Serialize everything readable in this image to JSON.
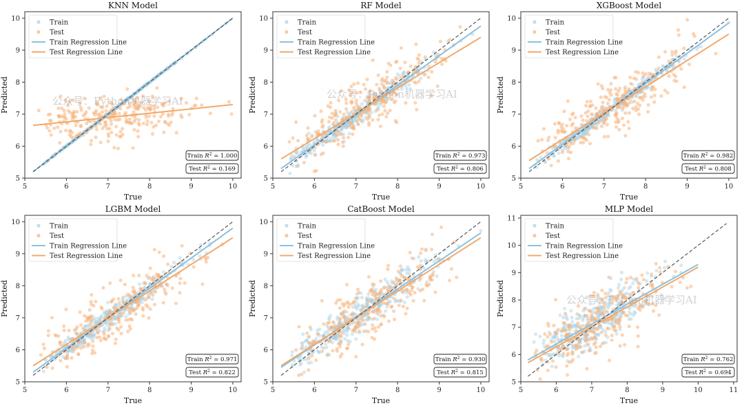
{
  "figure": {
    "watermark": "公众号：Python机器学习AI",
    "colors": {
      "train": "#a6cee3",
      "test": "#f7b27a",
      "train_line": "#8cc0dd",
      "test_line": "#f2a86a",
      "diagonal": "#555555"
    },
    "legend_labels": [
      "Train",
      "Test",
      "Train Regression Line",
      "Test Regression Line"
    ]
  },
  "chart_data": [
    {
      "type": "scatter",
      "title": "KNN Model",
      "xlabel": "True",
      "ylabel": "Predicted",
      "xlim": [
        5,
        10.2
      ],
      "ylim": [
        5,
        10.2
      ],
      "xticks": [
        5,
        6,
        7,
        8,
        9,
        10
      ],
      "yticks": [
        5,
        6,
        7,
        8,
        9,
        10
      ],
      "train_line": [
        [
          5.2,
          5.2
        ],
        [
          10,
          10
        ]
      ],
      "test_line": [
        [
          5.2,
          6.65
        ],
        [
          10,
          7.3
        ]
      ],
      "train_r2": "Train $R^2$ = 1.000",
      "test_r2": "Test $R^2$ = 0.169",
      "legend_position": "upper-left",
      "watermark": true
    },
    {
      "type": "scatter",
      "title": "RF Model",
      "xlabel": "True",
      "ylabel": "Predicted",
      "xlim": [
        5,
        10.2
      ],
      "ylim": [
        5,
        10.2
      ],
      "xticks": [
        5,
        6,
        7,
        8,
        9,
        10
      ],
      "yticks": [
        5,
        6,
        7,
        8,
        9,
        10
      ],
      "train_line": [
        [
          5.2,
          5.3
        ],
        [
          10,
          9.75
        ]
      ],
      "test_line": [
        [
          5.2,
          5.6
        ],
        [
          10,
          9.4
        ]
      ],
      "train_r2": "Train $R^2$ = 0.973",
      "test_r2": "Test $R^2$ = 0.806",
      "legend_position": "upper-left",
      "watermark": true
    },
    {
      "type": "scatter",
      "title": "XGBoost Model",
      "xlabel": "True",
      "ylabel": "Predicted",
      "xlim": [
        5,
        10.2
      ],
      "ylim": [
        5,
        10.2
      ],
      "xticks": [
        5,
        6,
        7,
        8,
        9,
        10
      ],
      "yticks": [
        5,
        6,
        7,
        8,
        9,
        10
      ],
      "train_line": [
        [
          5.2,
          5.3
        ],
        [
          10,
          9.85
        ]
      ],
      "test_line": [
        [
          5.2,
          5.55
        ],
        [
          10,
          9.5
        ]
      ],
      "train_r2": "Train $R^2$ = 0.982",
      "test_r2": "Test $R^2$ = 0.808",
      "legend_position": "upper-left",
      "watermark": false
    },
    {
      "type": "scatter",
      "title": "LGBM Model",
      "xlabel": "True",
      "ylabel": "Predicted",
      "xlim": [
        5,
        10.2
      ],
      "ylim": [
        5,
        10.2
      ],
      "xticks": [
        5,
        6,
        7,
        8,
        9,
        10
      ],
      "yticks": [
        5,
        6,
        7,
        8,
        9,
        10
      ],
      "train_line": [
        [
          5.2,
          5.3
        ],
        [
          10,
          9.8
        ]
      ],
      "test_line": [
        [
          5.2,
          5.5
        ],
        [
          10,
          9.5
        ]
      ],
      "train_r2": "Train $R^2$ = 0.971",
      "test_r2": "Test $R^2$ = 0.822",
      "legend_position": "upper-left",
      "watermark": false
    },
    {
      "type": "scatter",
      "title": "CatBoost Model",
      "xlabel": "True",
      "ylabel": "Predicted",
      "xlim": [
        5,
        10.2
      ],
      "ylim": [
        5,
        10.2
      ],
      "xticks": [
        5,
        6,
        7,
        8,
        9,
        10
      ],
      "yticks": [
        5,
        6,
        7,
        8,
        9,
        10
      ],
      "train_line": [
        [
          5.2,
          5.45
        ],
        [
          10,
          9.65
        ]
      ],
      "test_line": [
        [
          5.2,
          5.5
        ],
        [
          10,
          9.5
        ]
      ],
      "train_r2": "Train $R^2$ = 0.930",
      "test_r2": "Test $R^2$ = 0.815",
      "legend_position": "upper-left",
      "watermark": false
    },
    {
      "type": "scatter",
      "title": "MLP Model",
      "xlabel": "True",
      "ylabel": "Predicted",
      "xlim": [
        5,
        11.1
      ],
      "ylim": [
        5,
        11.1
      ],
      "xticks": [
        5,
        6,
        7,
        8,
        9,
        10,
        11
      ],
      "yticks": [
        5,
        6,
        7,
        8,
        9,
        10,
        11
      ],
      "train_line": [
        [
          5.2,
          5.8
        ],
        [
          10,
          9.3
        ]
      ],
      "test_line": [
        [
          5.2,
          5.7
        ],
        [
          10,
          9.2
        ]
      ],
      "train_r2": "Train $R^2$ = 0.762",
      "test_r2": "Test $R^2$ = 0.694",
      "legend_position": "upper-left",
      "watermark": true
    }
  ]
}
